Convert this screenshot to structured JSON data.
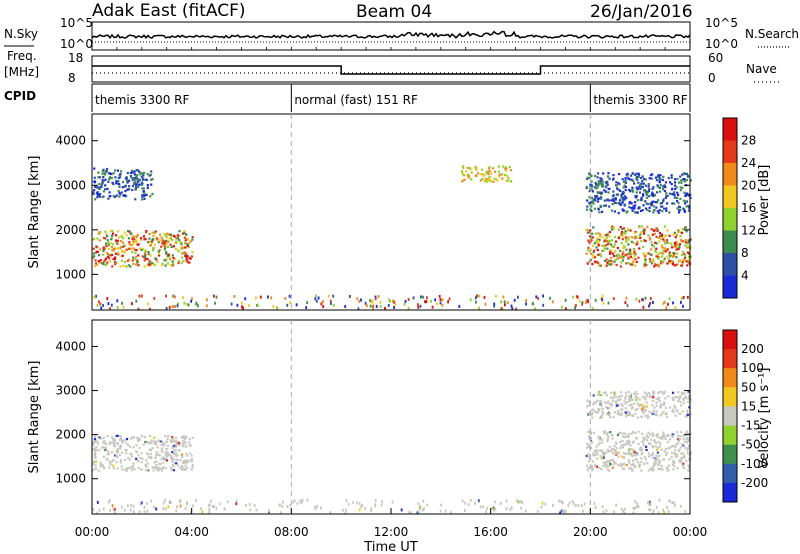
{
  "header": {
    "station": "Adak East (fitACF)",
    "beam": "Beam 04",
    "date": "26/Jan/2016"
  },
  "side_labels": {
    "nsky": "N.Sky",
    "nsearch": "N.Search",
    "freq_line1": "Freq.",
    "freq_line2": "[MHz]",
    "nave": "Nave",
    "cpid": "CPID"
  },
  "small_panel_ticks": {
    "noise_left": [
      "10^5",
      "10^0"
    ],
    "noise_right": [
      "10^5",
      "10^0"
    ],
    "freq_left": [
      "18",
      "8"
    ],
    "freq_right": [
      "60",
      "0"
    ]
  },
  "cpid_segments": [
    {
      "start_hour": 0,
      "end_hour": 8,
      "label": "themis 3300 RF"
    },
    {
      "start_hour": 8,
      "end_hour": 20,
      "label": "normal (fast) 151 RF"
    },
    {
      "start_hour": 20,
      "end_hour": 24,
      "label": "themis 3300 RF"
    }
  ],
  "chart_data": [
    {
      "type": "heatmap",
      "title": "",
      "ylabel": "Slant Range [km]",
      "xlim": [
        0,
        24
      ],
      "ylim": [
        200,
        4600
      ],
      "yticks": [
        1000,
        2000,
        3000,
        4000
      ],
      "colorbar": {
        "label": "Power [dB]",
        "ticks": [
          "4",
          "8",
          "12",
          "16",
          "20",
          "24",
          "28"
        ],
        "colors": [
          "#1a2ad6",
          "#2f4fa6",
          "#3d8c4e",
          "#8fd12f",
          "#f0c81f",
          "#f08a1a",
          "#e23a1a",
          "#d81010"
        ]
      },
      "regions": [
        {
          "t_start": 0.0,
          "t_end": 4.0,
          "r_low": 1200,
          "r_high": 2000,
          "level": "high"
        },
        {
          "t_start": 0.0,
          "t_end": 2.4,
          "r_low": 2700,
          "r_high": 3400,
          "level": "low"
        },
        {
          "t_start": 19.8,
          "t_end": 24.0,
          "r_low": 1200,
          "r_high": 2100,
          "level": "high"
        },
        {
          "t_start": 19.8,
          "t_end": 24.0,
          "r_low": 2400,
          "r_high": 3300,
          "level": "low"
        },
        {
          "t_start": 14.8,
          "t_end": 16.8,
          "r_low": 3100,
          "r_high": 3450,
          "level": "mid"
        }
      ]
    },
    {
      "type": "heatmap",
      "title": "",
      "ylabel": "Slant Range [km]",
      "xlabel": "Time UT",
      "xlim": [
        0,
        24
      ],
      "ylim": [
        200,
        4600
      ],
      "yticks": [
        1000,
        2000,
        3000,
        4000
      ],
      "xticks": [
        "00:00",
        "04:00",
        "08:00",
        "12:00",
        "16:00",
        "20:00",
        "00:00"
      ],
      "colorbar": {
        "label": "Velocity [m s⁻¹]",
        "ticks": [
          "200",
          "100",
          "50",
          "15",
          "-15",
          "-50",
          "-100",
          "-200"
        ],
        "colors": [
          "#1a2ad6",
          "#2f5fa8",
          "#3f8f4f",
          "#8fd12f",
          "#c8c8c0",
          "#f0c81f",
          "#f08a1a",
          "#e23a1a",
          "#d81010"
        ]
      },
      "regions": [
        {
          "t_start": 0.0,
          "t_end": 4.0,
          "r_low": 1200,
          "r_high": 2000,
          "level": "ground"
        },
        {
          "t_start": 19.8,
          "t_end": 24.0,
          "r_low": 1200,
          "r_high": 2100,
          "level": "ground"
        },
        {
          "t_start": 19.8,
          "t_end": 24.0,
          "r_low": 2400,
          "r_high": 3000,
          "level": "ground"
        }
      ]
    }
  ]
}
